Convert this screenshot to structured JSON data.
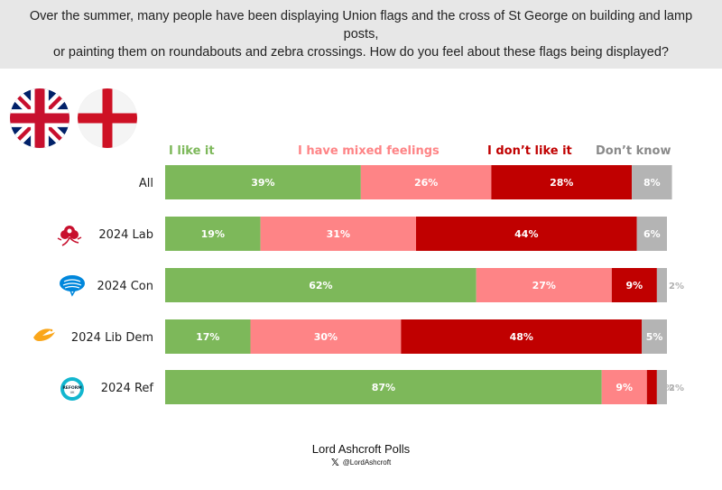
{
  "header": {
    "question_line1": "Over the summer, many people have been displaying Union flags and the cross of St George on building and lamp posts,",
    "question_line2": "or painting them on roundabouts and zebra crossings. How do you feel about these flags being displayed?"
  },
  "icons": {
    "union_flag": "union-flag-icon",
    "st_george_flag": "st-george-cross-icon",
    "labour": "labour-rose-icon",
    "conservative": "conservative-tree-icon",
    "lib_dem": "lib-dem-bird-icon",
    "reform": "reform-uk-icon",
    "x": "x-logo-icon"
  },
  "logo_text": {
    "reform": "REFORM",
    "reform_sub": "UK"
  },
  "colors": {
    "like": "#7db85a",
    "mixed": "#fe8486",
    "dislike": "#c00000",
    "dont_know": "#b4b4b4",
    "header_bg": "#e7e7e7"
  },
  "chart_data": {
    "type": "bar",
    "orientation": "horizontal",
    "stacked": true,
    "categories": [
      "All",
      "2024 Lab",
      "2024 Con",
      "2024 Lib Dem",
      "2024 Ref"
    ],
    "series": [
      {
        "name": "I like it",
        "color": "#7db85a",
        "values": [
          39,
          19,
          62,
          17,
          87
        ],
        "labels": [
          "39%",
          "19%",
          "62%",
          "17%",
          "87%"
        ]
      },
      {
        "name": "I have mixed feelings",
        "color": "#fe8486",
        "values": [
          26,
          31,
          27,
          30,
          9
        ],
        "labels": [
          "26%",
          "31%",
          "27%",
          "30%",
          "9%"
        ]
      },
      {
        "name": "I don’t like it",
        "color": "#c00000",
        "values": [
          28,
          44,
          9,
          48,
          2
        ],
        "labels": [
          "28%",
          "44%",
          "9%",
          "48%",
          "2%"
        ]
      },
      {
        "name": "Don’t know",
        "color": "#b4b4b4",
        "values": [
          8,
          6,
          2,
          5,
          2
        ],
        "labels": [
          "8%",
          "6%",
          "2%",
          "5%",
          "2%"
        ]
      }
    ],
    "xlim": [
      0,
      100
    ],
    "legend_position": "top",
    "grid": false
  },
  "footer": {
    "source": "Lord Ashcroft Polls",
    "handle": "@LordAshcroft"
  }
}
